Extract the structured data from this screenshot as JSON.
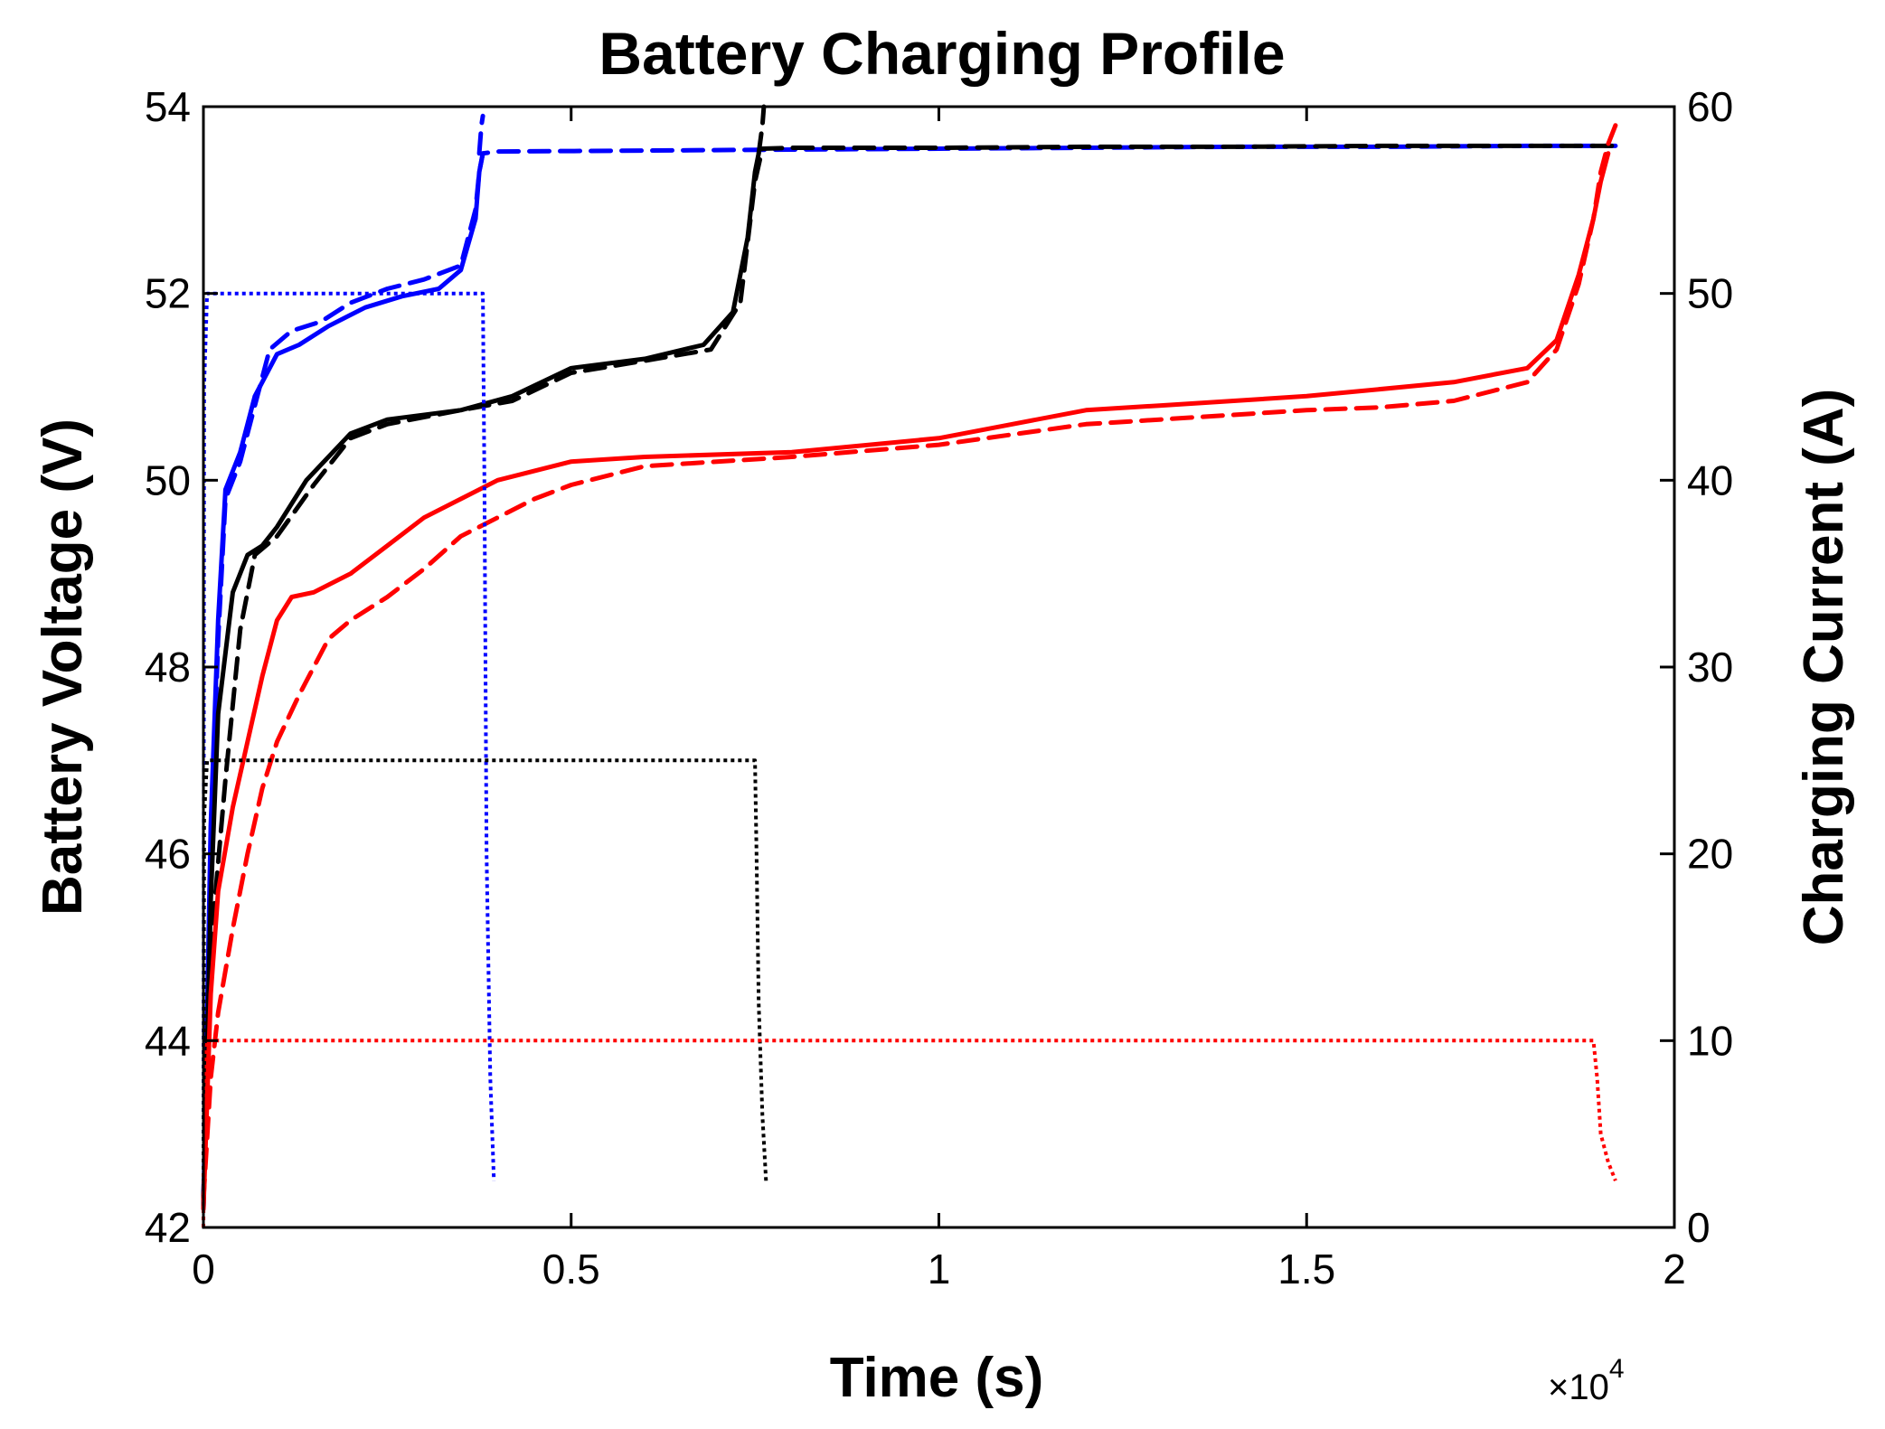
{
  "chart_data": {
    "type": "line",
    "title": "Battery Charging Profile",
    "xlabel": "Time (s)",
    "x_exponent_label": "×10",
    "x_exponent_power": "4",
    "ylabel_left": "Battery Voltage (V)",
    "ylabel_right": "Charging Current (A)",
    "xlim": [
      0,
      2
    ],
    "ylim_left": [
      42,
      54
    ],
    "ylim_right": [
      0,
      60
    ],
    "x_ticks": [
      0,
      0.5,
      1,
      1.5,
      2
    ],
    "x_tick_labels": [
      "0",
      "0.5",
      "1",
      "1.5",
      "2"
    ],
    "y_left_ticks": [
      42,
      44,
      46,
      48,
      50,
      52,
      54
    ],
    "y_left_tick_labels": [
      "42",
      "44",
      "46",
      "48",
      "50",
      "52",
      "54"
    ],
    "y_right_ticks": [
      0,
      10,
      20,
      30,
      40,
      50,
      60
    ],
    "y_right_tick_labels": [
      "0",
      "10",
      "20",
      "30",
      "40",
      "50",
      "60"
    ],
    "grid": false,
    "legend": "none",
    "colors": {
      "blue": "#0000ff",
      "black": "#000000",
      "red": "#ff0000"
    },
    "series": [
      {
        "color": "blue",
        "style": "solid",
        "axis": "left",
        "x": [
          0,
          0.01,
          0.02,
          0.03,
          0.05,
          0.07,
          0.1,
          0.13,
          0.17,
          0.22,
          0.27,
          0.32,
          0.35,
          0.37,
          0.375,
          0.38
        ],
        "y": [
          42.2,
          46.3,
          48.5,
          49.9,
          50.3,
          50.9,
          51.35,
          51.45,
          51.65,
          51.85,
          51.97,
          52.05,
          52.25,
          52.8,
          53.3,
          53.5
        ]
      },
      {
        "color": "blue",
        "style": "dashed",
        "axis": "left",
        "x": [
          0,
          0.01,
          0.02,
          0.03,
          0.05,
          0.07,
          0.09,
          0.12,
          0.16,
          0.2,
          0.25,
          0.3,
          0.35,
          0.37,
          0.375,
          0.38,
          0.4,
          0.6,
          0.8,
          1,
          1.2,
          1.4,
          1.6,
          1.8,
          1.92
        ],
        "y": [
          42.3,
          46,
          48.3,
          49.8,
          50.2,
          50.8,
          51.4,
          51.6,
          51.7,
          51.9,
          52.05,
          52.15,
          52.3,
          52.9,
          53.3,
          53.5,
          53.52,
          53.53,
          53.54,
          53.55,
          53.56,
          53.57,
          53.57,
          53.58,
          53.58
        ]
      },
      {
        "color": "blue",
        "style": "dashed",
        "axis": "left",
        "x": [
          0.375,
          0.378,
          0.38
        ],
        "y": [
          53.5,
          53.8,
          53.9
        ]
      },
      {
        "color": "black",
        "style": "solid",
        "axis": "left",
        "x": [
          0,
          0.01,
          0.02,
          0.04,
          0.06,
          0.08,
          0.1,
          0.14,
          0.2,
          0.25,
          0.35,
          0.42,
          0.5,
          0.6,
          0.68,
          0.72,
          0.74,
          0.75,
          0.755
        ],
        "y": [
          42.2,
          45.5,
          47.5,
          48.8,
          49.2,
          49.3,
          49.5,
          50,
          50.5,
          50.65,
          50.75,
          50.9,
          51.2,
          51.3,
          51.45,
          51.8,
          52.6,
          53.3,
          53.5
        ]
      },
      {
        "color": "black",
        "style": "dashed",
        "axis": "left",
        "x": [
          0,
          0.01,
          0.03,
          0.05,
          0.07,
          0.1,
          0.15,
          0.2,
          0.25,
          0.35,
          0.42,
          0.5,
          0.6,
          0.69,
          0.73,
          0.75,
          0.76,
          0.8,
          1,
          1.2,
          1.4,
          1.6,
          1.8,
          1.92
        ],
        "y": [
          42.3,
          45,
          46.8,
          48.4,
          49.2,
          49.4,
          49.95,
          50.45,
          50.6,
          50.75,
          50.85,
          51.15,
          51.28,
          51.4,
          51.9,
          53.2,
          53.55,
          53.56,
          53.56,
          53.57,
          53.57,
          53.58,
          53.58,
          53.58
        ]
      },
      {
        "color": "black",
        "style": "dashed",
        "axis": "left",
        "x": [
          0.755,
          0.76,
          0.762
        ],
        "y": [
          53.5,
          53.8,
          54
        ]
      },
      {
        "color": "red",
        "style": "solid",
        "axis": "left",
        "x": [
          0,
          0.01,
          0.02,
          0.04,
          0.06,
          0.08,
          0.1,
          0.12,
          0.15,
          0.2,
          0.25,
          0.3,
          0.35,
          0.4,
          0.5,
          0.6,
          0.8,
          1,
          1.1,
          1.2,
          1.3,
          1.5,
          1.7,
          1.8,
          1.84,
          1.87,
          1.89,
          1.9,
          1.91
        ],
        "y": [
          42.2,
          44.5,
          45.6,
          46.5,
          47.2,
          47.9,
          48.5,
          48.75,
          48.8,
          49.0,
          49.3,
          49.6,
          49.8,
          50.0,
          50.2,
          50.25,
          50.3,
          50.45,
          50.6,
          50.75,
          50.8,
          50.9,
          51.05,
          51.2,
          51.5,
          52.2,
          52.8,
          53.2,
          53.5
        ]
      },
      {
        "color": "red",
        "style": "dashed",
        "axis": "left",
        "x": [
          0,
          0.01,
          0.02,
          0.04,
          0.06,
          0.08,
          0.1,
          0.13,
          0.17,
          0.2,
          0.25,
          0.3,
          0.35,
          0.45,
          0.5,
          0.6,
          0.8,
          1,
          1.2,
          1.3,
          1.5,
          1.6,
          1.7,
          1.8,
          1.84,
          1.87,
          1.89,
          1.9,
          1.91,
          1.92
        ],
        "y": [
          42.3,
          43.6,
          44.3,
          45.2,
          46,
          46.7,
          47.2,
          47.7,
          48.3,
          48.5,
          48.75,
          49.05,
          49.4,
          49.8,
          49.95,
          50.15,
          50.25,
          50.38,
          50.6,
          50.65,
          50.75,
          50.78,
          50.85,
          51.05,
          51.4,
          52.1,
          52.8,
          53.3,
          53.6,
          53.8
        ]
      },
      {
        "color": "blue",
        "style": "dotted",
        "axis": "right",
        "x": [
          0,
          0.001,
          0.005,
          0.01,
          0.38,
          0.382,
          0.385,
          0.39,
          0.395
        ],
        "y": [
          0,
          45,
          50,
          50,
          50,
          40,
          20,
          8,
          2.5
        ]
      },
      {
        "color": "black",
        "style": "dotted",
        "axis": "right",
        "x": [
          0,
          0.001,
          0.005,
          0.01,
          0.75,
          0.752,
          0.755,
          0.76,
          0.765
        ],
        "y": [
          0,
          22,
          25,
          25,
          25,
          20,
          12,
          6,
          2.5
        ]
      },
      {
        "color": "red",
        "style": "dotted",
        "axis": "right",
        "x": [
          0,
          0.001,
          0.005,
          0.01,
          1.89,
          1.895,
          1.9,
          1.91,
          1.92
        ],
        "y": [
          0,
          8,
          10,
          10,
          10,
          8,
          5,
          3.5,
          2.5
        ]
      }
    ]
  }
}
